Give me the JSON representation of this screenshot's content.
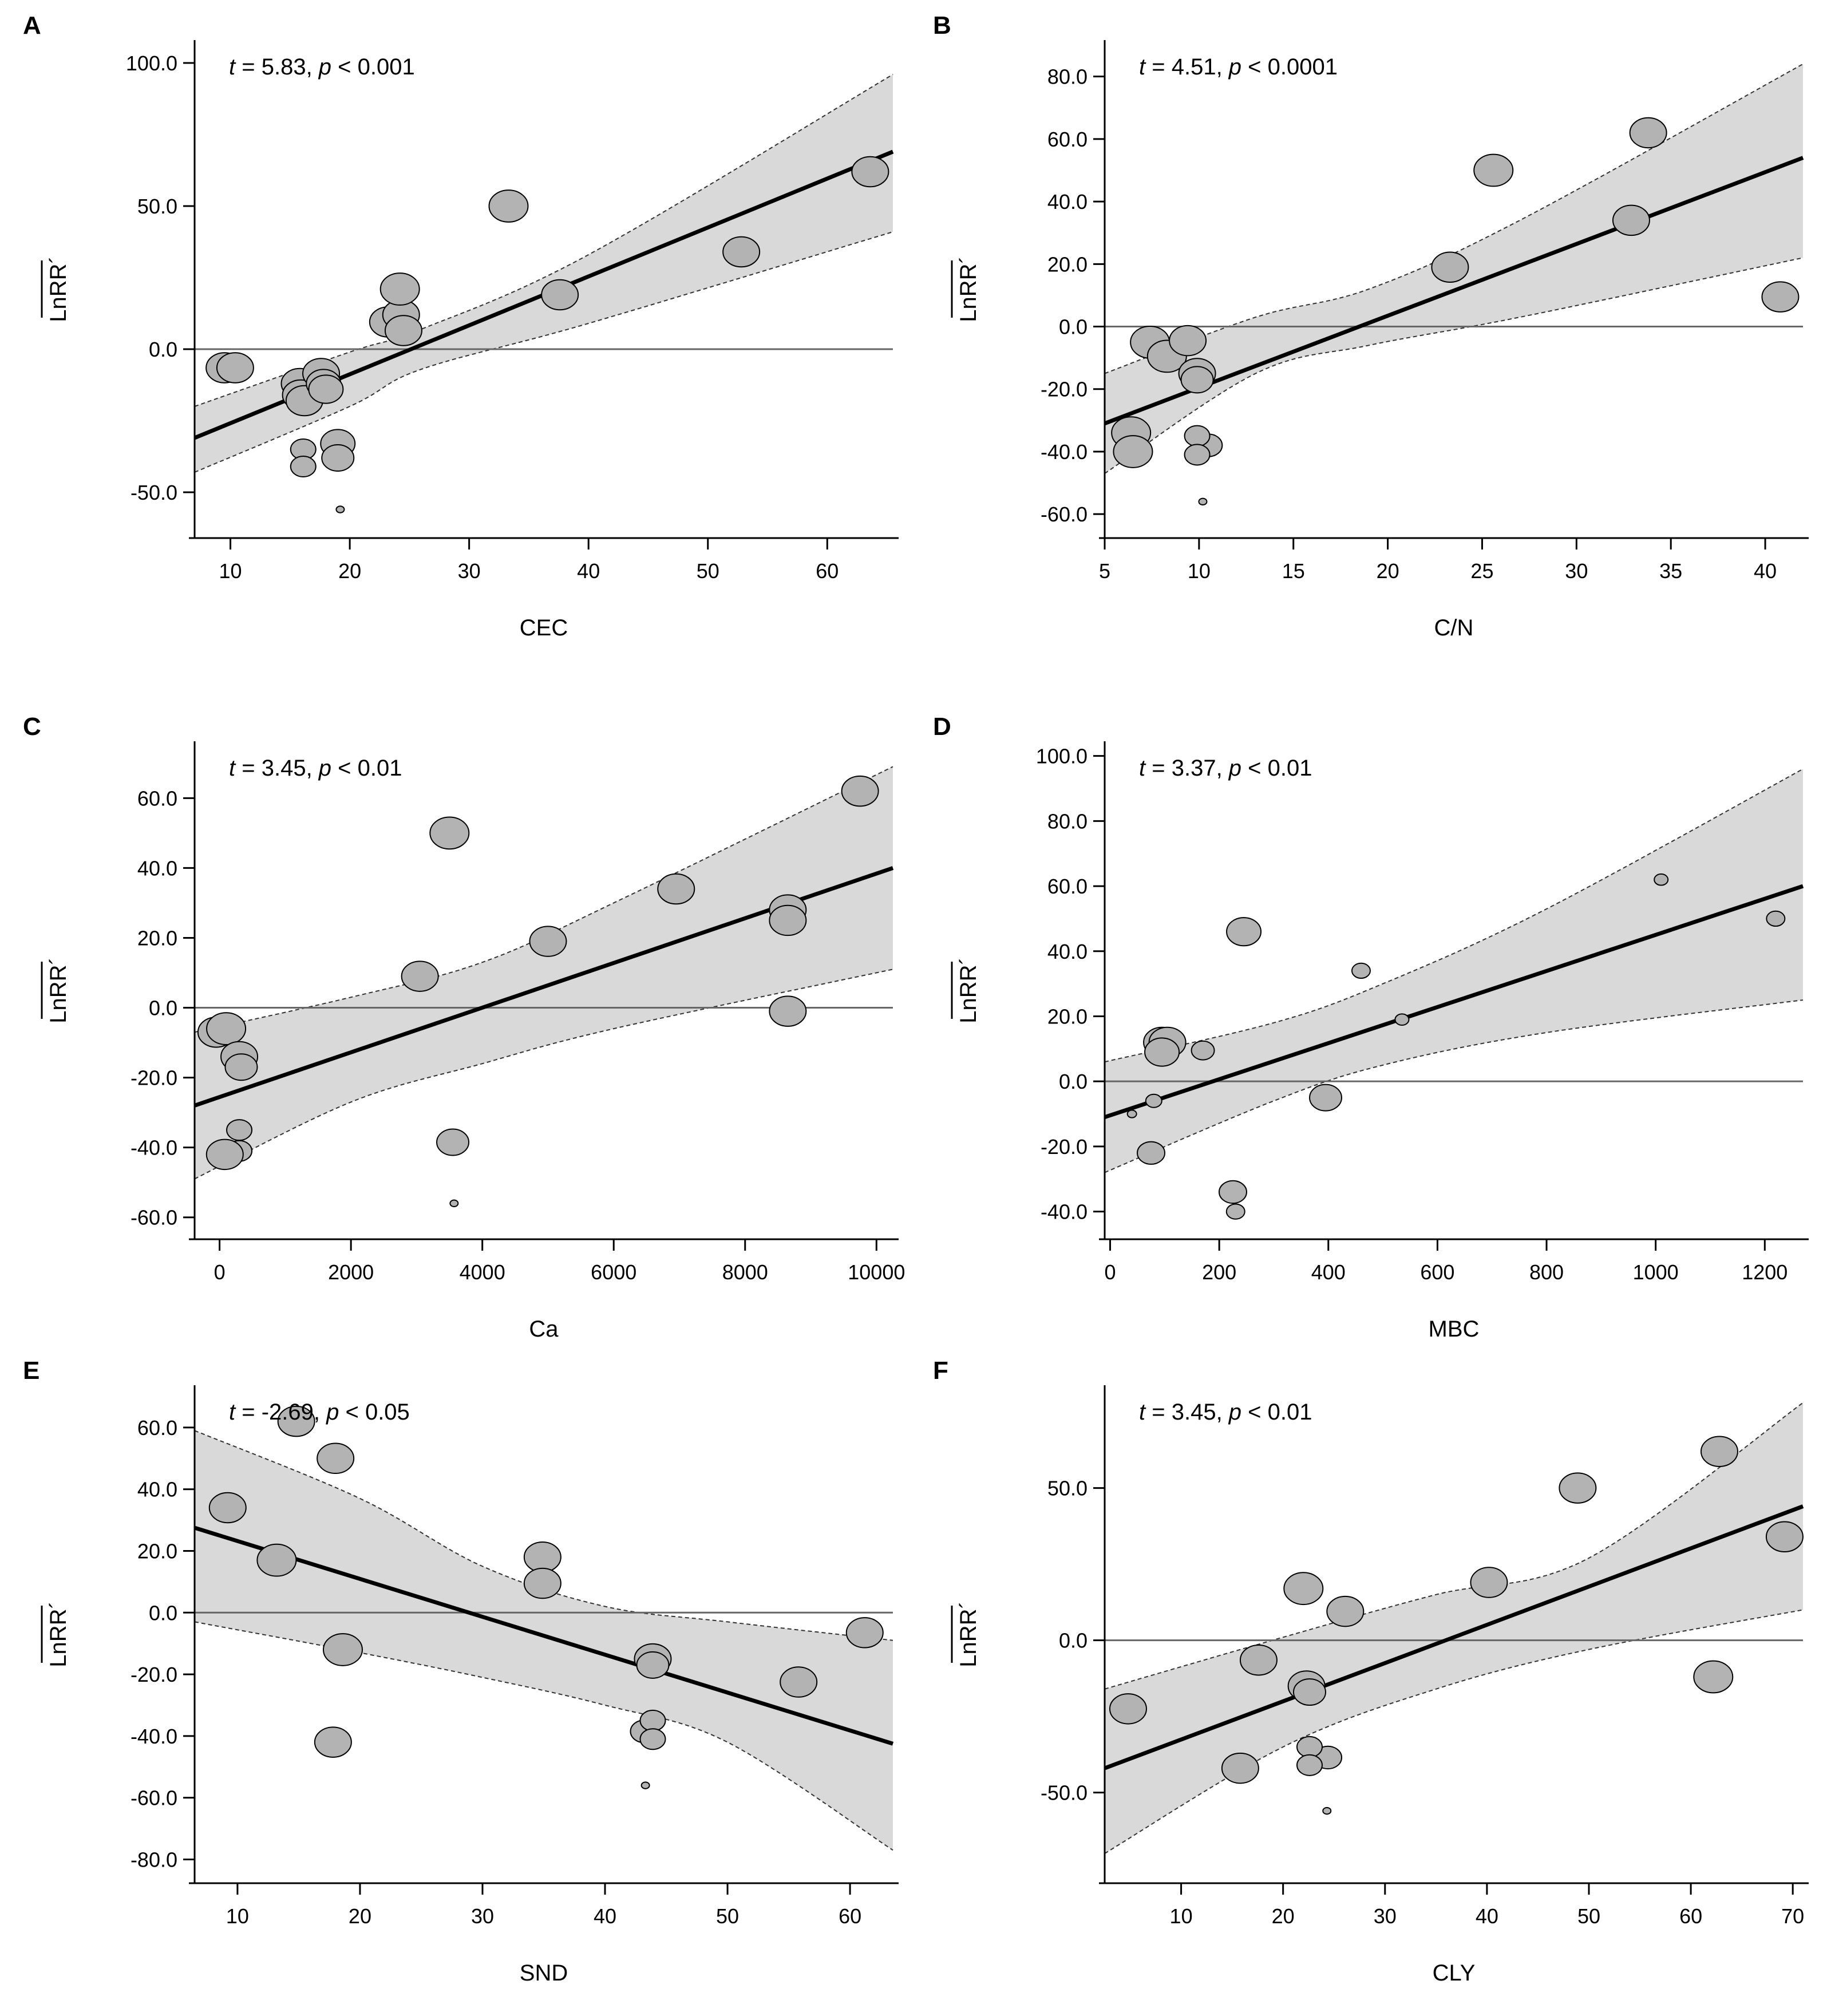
{
  "figure": {
    "y_axis_label": "LnRR´"
  },
  "chart_data": [
    {
      "panel": "A",
      "type": "scatter",
      "xlabel": "CEC",
      "ylabel": "LnRR´",
      "xlim": [
        7,
        65.5
      ],
      "ylim": [
        -62,
        104
      ],
      "xticks": [
        10,
        20,
        30,
        40,
        50,
        60
      ],
      "yticks": [
        -50,
        0,
        50,
        100
      ],
      "xtick_labels": [
        "10",
        "20",
        "30",
        "40",
        "50",
        "60"
      ],
      "ytick_labels": [
        "-50.0",
        "0.0",
        "50.0",
        "100.0"
      ],
      "stat_t": "5.83",
      "stat_p": "0.001",
      "fit": {
        "x": [
          7,
          65.5
        ],
        "y": [
          -31,
          69
        ]
      },
      "band": {
        "x": [
          7,
          20,
          26,
          40,
          65.5
        ],
        "upper": [
          -20,
          -1,
          7,
          33,
          96
        ],
        "lower": [
          -43,
          -20,
          -7,
          9,
          41
        ]
      },
      "points": [
        {
          "x": 9.5,
          "y": -6.5,
          "size": 32
        },
        {
          "x": 10.4,
          "y": -6.5,
          "size": 32
        },
        {
          "x": 15.8,
          "y": -12,
          "size": 32
        },
        {
          "x": 15.9,
          "y": -16,
          "size": 32
        },
        {
          "x": 16.2,
          "y": -18,
          "size": 32
        },
        {
          "x": 17.6,
          "y": -8.5,
          "size": 32
        },
        {
          "x": 17.8,
          "y": -12,
          "size": 30
        },
        {
          "x": 18.0,
          "y": -14,
          "size": 30
        },
        {
          "x": 16.1,
          "y": -35,
          "size": 22
        },
        {
          "x": 16.1,
          "y": -41,
          "size": 22
        },
        {
          "x": 19.0,
          "y": -33,
          "size": 30
        },
        {
          "x": 19.0,
          "y": -38,
          "size": 28
        },
        {
          "x": 19.2,
          "y": -56,
          "size": 7
        },
        {
          "x": 23.2,
          "y": 9.5,
          "size": 32
        },
        {
          "x": 24.3,
          "y": 12,
          "size": 32
        },
        {
          "x": 24.5,
          "y": 6.5,
          "size": 32
        },
        {
          "x": 24.2,
          "y": 21,
          "size": 34
        },
        {
          "x": 33.3,
          "y": 50,
          "size": 34
        },
        {
          "x": 37.6,
          "y": 19,
          "size": 32
        },
        {
          "x": 52.8,
          "y": 34,
          "size": 32
        },
        {
          "x": 63.6,
          "y": 62,
          "size": 32
        }
      ]
    },
    {
      "panel": "B",
      "type": "scatter",
      "xlabel": "C/N",
      "ylabel": "LnRR´",
      "xlim": [
        5,
        42
      ],
      "ylim": [
        -64,
        88
      ],
      "xticks": [
        5,
        10,
        15,
        20,
        25,
        30,
        35,
        40
      ],
      "yticks": [
        -60,
        -40,
        -20,
        0,
        20,
        40,
        60,
        80
      ],
      "xtick_labels": [
        "5",
        "10",
        "15",
        "20",
        "25",
        "30",
        "35",
        "40"
      ],
      "ytick_labels": [
        "-60.0",
        "-40.0",
        "-20.0",
        "0.0",
        "20.0",
        "40.0",
        "60.0",
        "80.0"
      ],
      "stat_t": "4.51",
      "stat_p": "0.0001",
      "fit": {
        "x": [
          5,
          42
        ],
        "y": [
          -31,
          54
        ]
      },
      "band": {
        "x": [
          5,
          13,
          19,
          27,
          42
        ],
        "upper": [
          -15,
          3,
          12,
          34,
          84
        ],
        "lower": [
          -47,
          -15,
          -6,
          3,
          22
        ]
      },
      "points": [
        {
          "x": 6.4,
          "y": -34,
          "size": 34
        },
        {
          "x": 6.5,
          "y": -40,
          "size": 34
        },
        {
          "x": 7.4,
          "y": -5,
          "size": 34
        },
        {
          "x": 8.3,
          "y": -9.5,
          "size": 34
        },
        {
          "x": 9.4,
          "y": -4.5,
          "size": 32
        },
        {
          "x": 9.9,
          "y": -15,
          "size": 32
        },
        {
          "x": 9.9,
          "y": -17,
          "size": 28
        },
        {
          "x": 10.5,
          "y": -38,
          "size": 24
        },
        {
          "x": 9.9,
          "y": -35,
          "size": 22
        },
        {
          "x": 9.9,
          "y": -41,
          "size": 22
        },
        {
          "x": 10.2,
          "y": -56,
          "size": 7
        },
        {
          "x": 23.3,
          "y": 19,
          "size": 32
        },
        {
          "x": 25.6,
          "y": 50,
          "size": 34
        },
        {
          "x": 32.9,
          "y": 34,
          "size": 32
        },
        {
          "x": 33.8,
          "y": 62,
          "size": 32
        },
        {
          "x": 40.8,
          "y": 9.5,
          "size": 32
        }
      ]
    },
    {
      "panel": "C",
      "type": "scatter",
      "xlabel": "Ca",
      "ylabel": "LnRR´",
      "xlim": [
        -380,
        10250
      ],
      "ylim": [
        -63,
        73
      ],
      "xticks": [
        0,
        2000,
        4000,
        6000,
        8000,
        10000
      ],
      "yticks": [
        -60,
        -40,
        -20,
        0,
        20,
        40,
        60
      ],
      "xtick_labels": [
        "0",
        "2000",
        "4000",
        "6000",
        "8000",
        "10000"
      ],
      "ytick_labels": [
        "-60.0",
        "-40.0",
        "-20.0",
        "0.0",
        "20.0",
        "40.0",
        "60.0"
      ],
      "stat_t": "3.45",
      "stat_p": "0.01",
      "fit": {
        "x": [
          -380,
          10250
        ],
        "y": [
          -28,
          40
        ]
      },
      "band": {
        "x": [
          -380,
          2000,
          4000,
          6000,
          10250
        ],
        "upper": [
          -7,
          3,
          13,
          30,
          69
        ],
        "lower": [
          -49,
          -27,
          -16,
          -6,
          11
        ]
      },
      "points": [
        {
          "x": -50,
          "y": -7,
          "size": 32
        },
        {
          "x": 100,
          "y": -6,
          "size": 34
        },
        {
          "x": 300,
          "y": -14,
          "size": 32
        },
        {
          "x": 330,
          "y": -17,
          "size": 28
        },
        {
          "x": 300,
          "y": -35,
          "size": 22
        },
        {
          "x": 300,
          "y": -41,
          "size": 22
        },
        {
          "x": 80,
          "y": -42,
          "size": 32
        },
        {
          "x": 3050,
          "y": 9,
          "size": 32
        },
        {
          "x": 3500,
          "y": 50,
          "size": 34
        },
        {
          "x": 3550,
          "y": -38.5,
          "size": 28
        },
        {
          "x": 3570,
          "y": -56,
          "size": 7
        },
        {
          "x": 5000,
          "y": 19,
          "size": 32
        },
        {
          "x": 6950,
          "y": 34,
          "size": 32
        },
        {
          "x": 8650,
          "y": 28,
          "size": 32
        },
        {
          "x": 8650,
          "y": 25,
          "size": 32
        },
        {
          "x": 8650,
          "y": -1,
          "size": 32
        },
        {
          "x": 9750,
          "y": 62,
          "size": 32
        }
      ]
    },
    {
      "panel": "D",
      "type": "scatter",
      "xlabel": "MBC",
      "ylabel": "LnRR´",
      "xlim": [
        -10,
        1270
      ],
      "ylim": [
        -45,
        101
      ],
      "xticks": [
        0,
        200,
        400,
        600,
        800,
        1000,
        1200
      ],
      "yticks": [
        -40,
        -20,
        0,
        20,
        40,
        60,
        80,
        100
      ],
      "xtick_labels": [
        "0",
        "200",
        "400",
        "600",
        "800",
        "1000",
        "1200"
      ],
      "ytick_labels": [
        "-40.0",
        "-20.0",
        "0.0",
        "20.0",
        "40.0",
        "60.0",
        "80.0",
        "100.0"
      ],
      "stat_t": "3.37",
      "stat_p": "0.01",
      "fit": {
        "x": [
          -10,
          1270
        ],
        "y": [
          -11,
          60
        ]
      },
      "band": {
        "x": [
          -10,
          300,
          500,
          800,
          1270
        ],
        "upper": [
          6,
          18,
          30,
          53,
          96
        ],
        "lower": [
          -28,
          -6,
          5,
          15,
          25
        ]
      },
      "points": [
        {
          "x": 40,
          "y": -10,
          "size": 8
        },
        {
          "x": 80,
          "y": -6,
          "size": 14
        },
        {
          "x": 75,
          "y": -22,
          "size": 24
        },
        {
          "x": 95,
          "y": 12,
          "size": 32
        },
        {
          "x": 105,
          "y": 12,
          "size": 32
        },
        {
          "x": 95,
          "y": 9,
          "size": 30
        },
        {
          "x": 170,
          "y": 9.5,
          "size": 20
        },
        {
          "x": 225,
          "y": -34,
          "size": 24
        },
        {
          "x": 230,
          "y": -40,
          "size": 16
        },
        {
          "x": 245,
          "y": 46,
          "size": 30
        },
        {
          "x": 395,
          "y": -5,
          "size": 28
        },
        {
          "x": 460,
          "y": 34,
          "size": 16
        },
        {
          "x": 535,
          "y": 19,
          "size": 12
        },
        {
          "x": 1010,
          "y": 62,
          "size": 12
        },
        {
          "x": 1220,
          "y": 50,
          "size": 16
        }
      ]
    },
    {
      "panel": "E",
      "type": "scatter",
      "xlabel": "SND",
      "ylabel": "LnRR´",
      "xlim": [
        6.5,
        63.5
      ],
      "ylim": [
        -84,
        70
      ],
      "xticks": [
        10,
        20,
        30,
        40,
        50,
        60
      ],
      "yticks": [
        -80,
        -60,
        -40,
        -20,
        0,
        20,
        40,
        60
      ],
      "xtick_labels": [
        "10",
        "20",
        "30",
        "40",
        "50",
        "60"
      ],
      "ytick_labels": [
        "-80.0",
        "-60.0",
        "-40.0",
        "-20.0",
        "0.0",
        "20.0",
        "40.0",
        "60.0"
      ],
      "stat_t": "-2.69",
      "stat_p": "0.05",
      "fit": {
        "x": [
          6.5,
          63.5
        ],
        "y": [
          27.5,
          -42.5
        ]
      },
      "band": {
        "x": [
          6.5,
          20,
          30,
          40,
          50,
          63.5
        ],
        "upper": [
          59,
          37,
          15,
          2,
          -3,
          -9
        ],
        "lower": [
          -3,
          -13,
          -21,
          -30,
          -42,
          -77
        ]
      },
      "points": [
        {
          "x": 9.2,
          "y": 34,
          "size": 32
        },
        {
          "x": 13.2,
          "y": 17,
          "size": 34
        },
        {
          "x": 14.8,
          "y": 62,
          "size": 32
        },
        {
          "x": 17.8,
          "y": -42,
          "size": 32
        },
        {
          "x": 18.0,
          "y": 50,
          "size": 32
        },
        {
          "x": 18.6,
          "y": -12,
          "size": 34
        },
        {
          "x": 34.9,
          "y": 18,
          "size": 32
        },
        {
          "x": 34.9,
          "y": 9.5,
          "size": 32
        },
        {
          "x": 43.2,
          "y": -38.5,
          "size": 24
        },
        {
          "x": 43.9,
          "y": -15,
          "size": 32
        },
        {
          "x": 43.9,
          "y": -17,
          "size": 28
        },
        {
          "x": 43.9,
          "y": -35,
          "size": 22
        },
        {
          "x": 43.9,
          "y": -41,
          "size": 22
        },
        {
          "x": 43.3,
          "y": -56,
          "size": 7
        },
        {
          "x": 55.8,
          "y": -22.5,
          "size": 32
        },
        {
          "x": 61.2,
          "y": -6.5,
          "size": 32
        }
      ]
    },
    {
      "panel": "F",
      "type": "scatter",
      "xlabel": "CLY",
      "ylabel": "LnRR´",
      "xlim": [
        2.5,
        71
      ],
      "ylim": [
        -76,
        80
      ],
      "xticks": [
        10,
        20,
        30,
        40,
        50,
        60,
        70
      ],
      "yticks": [
        -50,
        0,
        50
      ],
      "xtick_labels": [
        "10",
        "20",
        "30",
        "40",
        "50",
        "60",
        "70"
      ],
      "ytick_labels": [
        "-50.0",
        "0.0",
        "50.0"
      ],
      "stat_t": "3.45",
      "stat_p": "0.01",
      "fit": {
        "x": [
          2.5,
          71
        ],
        "y": [
          -42,
          44
        ]
      },
      "band": {
        "x": [
          2.5,
          20,
          35,
          50,
          71
        ],
        "upper": [
          -16,
          1,
          15,
          27,
          78
        ],
        "lower": [
          -70,
          -35,
          -16,
          -3,
          10
        ]
      },
      "points": [
        {
          "x": 4.8,
          "y": -22.5,
          "size": 32
        },
        {
          "x": 15.8,
          "y": -42,
          "size": 32
        },
        {
          "x": 17.6,
          "y": -6.5,
          "size": 32
        },
        {
          "x": 22.0,
          "y": 17,
          "size": 34
        },
        {
          "x": 22.3,
          "y": -15,
          "size": 32
        },
        {
          "x": 22.6,
          "y": -17,
          "size": 28
        },
        {
          "x": 24.4,
          "y": -38.5,
          "size": 24
        },
        {
          "x": 22.6,
          "y": -35,
          "size": 22
        },
        {
          "x": 22.6,
          "y": -41,
          "size": 22
        },
        {
          "x": 24.3,
          "y": -56,
          "size": 7
        },
        {
          "x": 26.1,
          "y": 9.5,
          "size": 32
        },
        {
          "x": 40.2,
          "y": 19,
          "size": 32
        },
        {
          "x": 48.9,
          "y": 50,
          "size": 32
        },
        {
          "x": 62.2,
          "y": -12,
          "size": 34
        },
        {
          "x": 62.8,
          "y": 62,
          "size": 32
        },
        {
          "x": 69.2,
          "y": 34,
          "size": 32
        }
      ]
    }
  ]
}
